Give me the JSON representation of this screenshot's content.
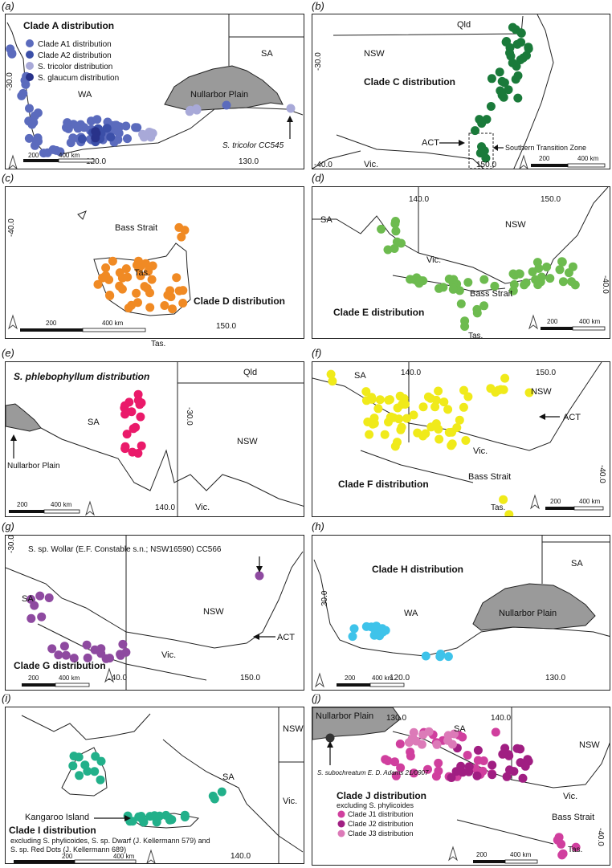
{
  "colors": {
    "clade_a1": "#5b6bbd",
    "clade_a2": "#3b4fa8",
    "tricolor": "#a8a9d8",
    "glaucum": "#28328a",
    "clade_c": "#1a7a3a",
    "clade_d": "#f08a24",
    "clade_e": "#6dbb4f",
    "phlebophyllum": "#ea1a6a",
    "clade_f": "#f0ea1a",
    "clade_g": "#8e4aa0",
    "clade_h": "#3ec3ea",
    "clade_i": "#22b08a",
    "clade_j1": "#d03f9e",
    "clade_j2": "#a01e82",
    "clade_j3": "#dc7ab8",
    "subochreatum": "#333333",
    "nullarbor": "#9a9a9a"
  },
  "panels": {
    "a": {
      "label": "(a)",
      "title": "Clade A distribution",
      "legend": [
        "Clade A1 distribution",
        "Clade A2 distribution",
        "S. tricolor distribution",
        "S. glaucum distribution"
      ],
      "wa": "WA",
      "sa": "SA",
      "nullarbor": "Nullarbor Plain",
      "lat": "-30.0",
      "lon1": "120.0",
      "lon2": "130.0",
      "note": "S. tricolor CC545",
      "scale_200": "200",
      "scale_400": "400 km"
    },
    "b": {
      "label": "(b)",
      "title": "Clade C distribution",
      "qld": "Qld",
      "nsw": "NSW",
      "act": "ACT",
      "vic": "Vic.",
      "transition": "Southern Transition Zone",
      "lat1": "-30.0",
      "lat2": "-40.0",
      "lon": "150.0",
      "scale_200": "200",
      "scale_400": "400 km"
    },
    "c": {
      "label": "(c)",
      "title": "Clade D distribution",
      "bass": "Bass Strait",
      "tas": "Tas.",
      "tas2": "Tas.",
      "lat": "-40.0",
      "lon": "150.0",
      "scale_200": "200",
      "scale_400": "400 km"
    },
    "d": {
      "label": "(d)",
      "title": "Clade E distribution",
      "sa": "SA",
      "nsw": "NSW",
      "vic": "Vic.",
      "bass": "Bass Strait",
      "tas": "Tas.",
      "lon1": "140.0",
      "lon2": "150.0",
      "lat": "-40.0",
      "scale_200": "200",
      "scale_400": "400 km"
    },
    "e": {
      "label": "(e)",
      "title": "S. phlebophyllum distribution",
      "sa": "SA",
      "qld": "Qld",
      "nsw": "NSW",
      "vic": "Vic.",
      "nullarbor": "Nullarbor Plain",
      "lat": "-30.0",
      "lon": "140.0",
      "scale_200": "200",
      "scale_400": "400 km"
    },
    "f": {
      "label": "(f)",
      "title": "Clade F distribution",
      "sa": "SA",
      "nsw": "NSW",
      "vic": "Vic.",
      "act": "ACT",
      "bass": "Bass Strait",
      "tas": "Tas.",
      "lon1": "140.0",
      "lon2": "150.0",
      "lat": "-40.0",
      "scale_200": "200",
      "scale_400": "400 km"
    },
    "g": {
      "label": "(g)",
      "title": "Clade G distribution",
      "sa": "SA",
      "nsw": "NSW",
      "vic": "Vic.",
      "act": "ACT",
      "note": "S. sp. Wollar (E.F. Constable s.n.; NSW16590) CC566",
      "lat": "-30.0",
      "lon1": "140.0",
      "lon2": "150.0",
      "scale_200": "200",
      "scale_400": "400 km"
    },
    "h": {
      "label": "(h)",
      "title": "Clade H distribution",
      "wa": "WA",
      "sa": "SA",
      "nullarbor": "Nullarbor Plain",
      "lat": "30.0",
      "lon1": "120.0",
      "lon2": "130.0",
      "scale_200": "200",
      "scale_400": "400 km"
    },
    "i": {
      "label": "(i)",
      "title": "Clade I distribution",
      "kangaroo": "Kangaroo Island",
      "sa": "SA",
      "nsw": "NSW",
      "vic": "Vic.",
      "excl1": "excluding S. phylicoides, S. sp. Dwarf (J. Kellermann 579) and",
      "excl2": "S. sp. Red Dots (J. Kellermann 689)",
      "lon": "140.0",
      "scale_200": "200",
      "scale_400": "400 km"
    },
    "j": {
      "label": "(j)",
      "title": "Clade J distribution",
      "sub": "excluding S. phylicoides",
      "legend": [
        "Clade J1 distribution",
        "Clade J2 distribution",
        "Clade J3 distribution"
      ],
      "nullarbor": "Nullarbor Plain",
      "sa": "SA",
      "nsw": "NSW",
      "vic": "Vic.",
      "bass": "Bass Strait",
      "tas": "Tas.",
      "note": "S. subochreatum E. D. Adams 21/0907",
      "lon1": "130.0",
      "lon2": "140.0",
      "lat": "-40.0",
      "scale_200": "200",
      "scale_400": "400 km"
    }
  }
}
